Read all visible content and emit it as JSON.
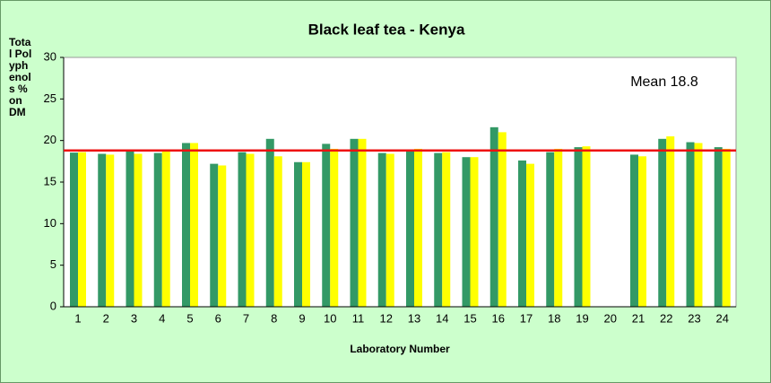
{
  "chart_data": {
    "type": "bar",
    "title": "Black leaf tea - Kenya",
    "x_label": "Laboratory Number",
    "y_label": "Total Polyphenols % on DM",
    "categories": [
      "1",
      "2",
      "3",
      "4",
      "5",
      "6",
      "7",
      "8",
      "9",
      "10",
      "11",
      "12",
      "13",
      "14",
      "15",
      "16",
      "17",
      "18",
      "19",
      "20",
      "21",
      "22",
      "23",
      "24"
    ],
    "series": [
      {
        "color": "#339966",
        "values": [
          18.55,
          18.4,
          18.8,
          18.5,
          19.7,
          17.2,
          18.6,
          20.2,
          17.4,
          19.6,
          20.2,
          18.5,
          18.9,
          18.5,
          18.0,
          21.6,
          17.6,
          18.6,
          19.2,
          null,
          18.3,
          20.2,
          19.8,
          19.2
        ]
      },
      {
        "color": "#ffff00",
        "values": [
          18.6,
          18.3,
          18.4,
          18.9,
          19.7,
          17.0,
          18.4,
          18.1,
          17.4,
          19.0,
          20.2,
          18.4,
          19.0,
          18.6,
          18.0,
          21.0,
          17.2,
          19.0,
          19.3,
          null,
          18.1,
          20.5,
          19.7,
          19.0
        ]
      }
    ],
    "mean_line": {
      "value": 18.8,
      "label": "Mean 18.8",
      "color": "#ee1111"
    },
    "ylim": [
      0,
      30
    ],
    "yticks": [
      0,
      5,
      10,
      15,
      20,
      25,
      30
    ],
    "grid": false
  }
}
